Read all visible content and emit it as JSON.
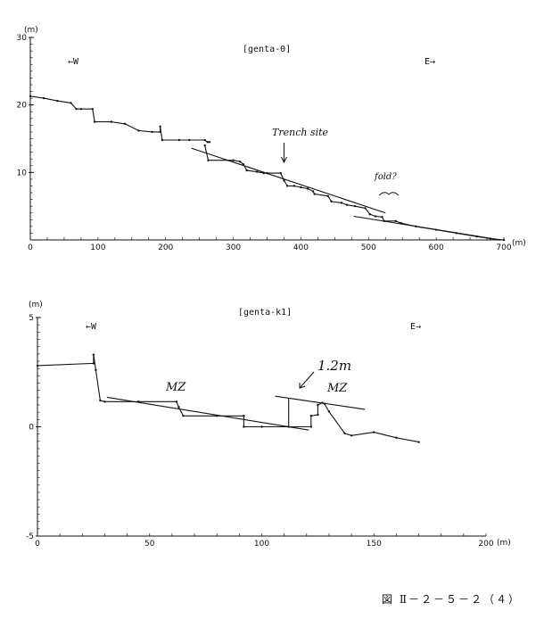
{
  "figure_caption": "図 Ⅱ－２－５－２（４）",
  "chart_data": [
    {
      "type": "line",
      "title": "[genta-0]",
      "xunit": "(m)",
      "yunit": "(m)",
      "xlim": [
        0,
        700
      ],
      "ylim": [
        0,
        30
      ],
      "xticks": [
        0,
        100,
        200,
        300,
        400,
        500,
        600,
        700
      ],
      "yticks": [
        10,
        20,
        30
      ],
      "direction_left": "←W",
      "direction_right": "E→",
      "annotations": {
        "trench": "Trench site",
        "trench_x": 375,
        "fold": "fold?",
        "fold_x": 530
      },
      "series": [
        {
          "x": [
            0,
            20,
            40,
            60,
            68,
            75,
            92,
            95,
            120,
            140,
            160,
            180,
            192,
            192,
            195,
            220,
            235,
            258,
            262,
            265
          ],
          "y": [
            21.3,
            21.0,
            20.6,
            20.3,
            19.4,
            19.4,
            19.4,
            17.5,
            17.5,
            17.2,
            16.2,
            16.0,
            16.0,
            16.8,
            14.8,
            14.8,
            14.8,
            14.8,
            14.5,
            14.5
          ]
        },
        {
          "x": [
            258,
            263,
            300,
            310,
            315,
            320,
            335,
            345,
            350,
            370,
            375,
            380,
            390,
            400,
            410,
            418,
            420,
            440,
            445,
            460,
            468,
            480,
            495,
            502,
            510,
            520,
            523,
            540,
            548,
            570,
            600,
            630,
            660,
            680,
            700
          ],
          "y": [
            14.0,
            11.8,
            11.8,
            11.6,
            11.2,
            10.3,
            10.1,
            9.9,
            9.9,
            9.9,
            8.8,
            8.0,
            8.0,
            7.8,
            7.6,
            7.2,
            6.8,
            6.5,
            5.7,
            5.5,
            5.2,
            5.0,
            4.7,
            3.8,
            3.5,
            3.4,
            2.8,
            2.8,
            2.5,
            2.0,
            1.5,
            1.0,
            0.5,
            0.2,
            0.0
          ]
        }
      ],
      "fit_lines": [
        {
          "x": [
            238,
            525
          ],
          "y": [
            13.6,
            4.0
          ]
        },
        {
          "x": [
            478,
            695
          ],
          "y": [
            3.5,
            0.0
          ]
        }
      ]
    },
    {
      "type": "line",
      "title": "[genta-k1]",
      "xunit": "(m)",
      "yunit": "(m)",
      "xlim": [
        0,
        200
      ],
      "ylim": [
        -5,
        5
      ],
      "xticks": [
        0,
        50,
        100,
        150,
        200
      ],
      "yticks": [
        -5,
        0,
        5
      ],
      "direction_left": "←W",
      "direction_right": "E→",
      "annotations": {
        "mz_left": "MZ",
        "mz_right": "MZ",
        "offset": "1.2m"
      },
      "series": [
        {
          "x": [
            0,
            25,
            25,
            26,
            28,
            30,
            45,
            62,
            63,
            65,
            80,
            92,
            92,
            100,
            112,
            122,
            122,
            125,
            125,
            127,
            128,
            130,
            137,
            140,
            150,
            160,
            170
          ],
          "y": [
            2.8,
            2.9,
            3.3,
            2.6,
            1.2,
            1.15,
            1.15,
            1.15,
            0.9,
            0.5,
            0.5,
            0.5,
            0.0,
            0.0,
            0.0,
            0.0,
            0.5,
            0.55,
            1.0,
            1.1,
            1.05,
            0.7,
            -0.3,
            -0.4,
            -0.25,
            -0.5,
            -0.7
          ]
        }
      ],
      "fit_lines": [
        {
          "x": [
            31,
            121
          ],
          "y": [
            1.35,
            -0.15
          ]
        },
        {
          "x": [
            106,
            146
          ],
          "y": [
            1.4,
            0.8
          ]
        },
        {
          "x": [
            112,
            112
          ],
          "y": [
            0.0,
            1.3
          ]
        }
      ]
    }
  ]
}
